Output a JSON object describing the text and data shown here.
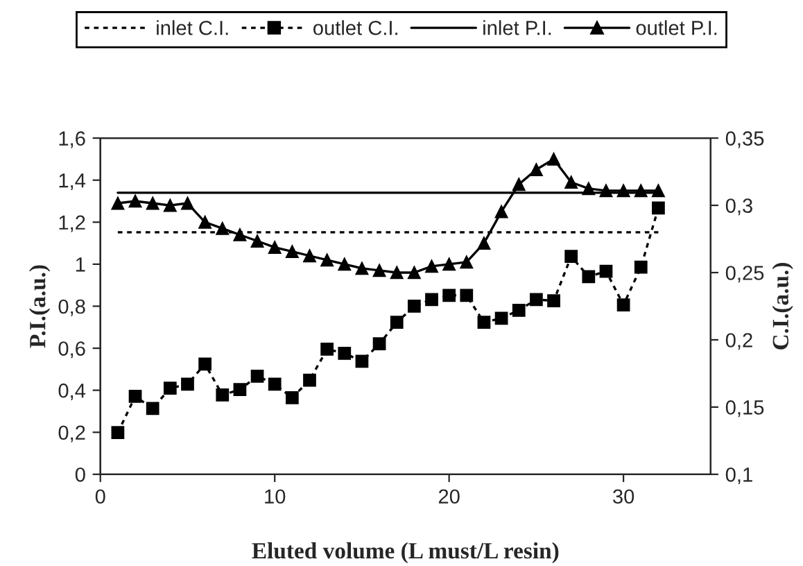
{
  "chart_data": {
    "type": "line",
    "xlabel": "Eluted volume (L must/L resin)",
    "ylabel": "P.I.(a.u.)",
    "y2label": "C.I.(a.u.)",
    "xlim": [
      0,
      35
    ],
    "xticks": [
      0,
      10,
      20,
      30
    ],
    "ylim": [
      0,
      1.6
    ],
    "yticks": [
      0,
      {
        "value": 0.2,
        "label": "0,2"
      },
      {
        "value": 0.4,
        "label": "0,4"
      },
      {
        "value": 0.6,
        "label": "0,6"
      },
      {
        "value": 0.8,
        "label": "0,8"
      },
      1,
      {
        "value": 1.2,
        "label": "1,2"
      },
      {
        "value": 1.4,
        "label": "1,4"
      },
      {
        "value": 1.6,
        "label": "1,6"
      }
    ],
    "y2lim": [
      0.1,
      0.35
    ],
    "y2ticks": [
      {
        "value": 0.1,
        "label": "0,1"
      },
      {
        "value": 0.15,
        "label": "0,15"
      },
      {
        "value": 0.2,
        "label": "0,2"
      },
      {
        "value": 0.25,
        "label": "0,25"
      },
      {
        "value": 0.3,
        "label": "0,3"
      },
      {
        "value": 0.35,
        "label": "0,35"
      }
    ],
    "grid": false,
    "legend": "top",
    "series": [
      {
        "name": "inlet C.I.",
        "color": "#000000",
        "axis": "y2",
        "line_style": "dotted",
        "marker": "none",
        "x": [
          1,
          32
        ],
        "values": [
          0.28,
          0.28
        ]
      },
      {
        "name": "outlet C.I.",
        "color": "#000000",
        "axis": "y2",
        "line_style": "dotted",
        "marker": "square",
        "x": [
          1,
          2,
          3,
          4,
          5,
          6,
          7,
          8,
          9,
          10,
          11,
          12,
          13,
          14,
          15,
          16,
          17,
          18,
          19,
          20,
          21,
          22,
          23,
          24,
          25,
          26,
          27,
          28,
          29,
          30,
          31,
          32
        ],
        "values": [
          0.131,
          0.158,
          0.149,
          0.164,
          0.167,
          0.182,
          0.159,
          0.163,
          0.173,
          0.167,
          0.157,
          0.17,
          0.193,
          0.19,
          0.184,
          0.197,
          0.213,
          0.225,
          0.23,
          0.233,
          0.233,
          0.213,
          0.216,
          0.222,
          0.23,
          0.229,
          0.262,
          0.247,
          0.251,
          0.226,
          0.254,
          0.298
        ]
      },
      {
        "name": "inlet P.I.",
        "color": "#000000",
        "axis": "y",
        "line_style": "solid",
        "marker": "none",
        "x": [
          1,
          32
        ],
        "values": [
          1.34,
          1.34
        ]
      },
      {
        "name": "outlet P.I.",
        "color": "#000000",
        "axis": "y",
        "line_style": "solid",
        "marker": "triangle",
        "x": [
          1,
          2,
          3,
          4,
          5,
          6,
          7,
          8,
          9,
          10,
          11,
          12,
          13,
          14,
          15,
          16,
          17,
          18,
          19,
          20,
          21,
          22,
          23,
          24,
          25,
          26,
          27,
          28,
          29,
          30,
          31,
          32
        ],
        "values": [
          1.29,
          1.3,
          1.29,
          1.28,
          1.29,
          1.2,
          1.17,
          1.14,
          1.11,
          1.08,
          1.06,
          1.04,
          1.02,
          1.0,
          0.98,
          0.97,
          0.96,
          0.96,
          0.99,
          1.0,
          1.01,
          1.1,
          1.25,
          1.38,
          1.45,
          1.5,
          1.39,
          1.36,
          1.35,
          1.35,
          1.35,
          1.35
        ]
      }
    ]
  }
}
